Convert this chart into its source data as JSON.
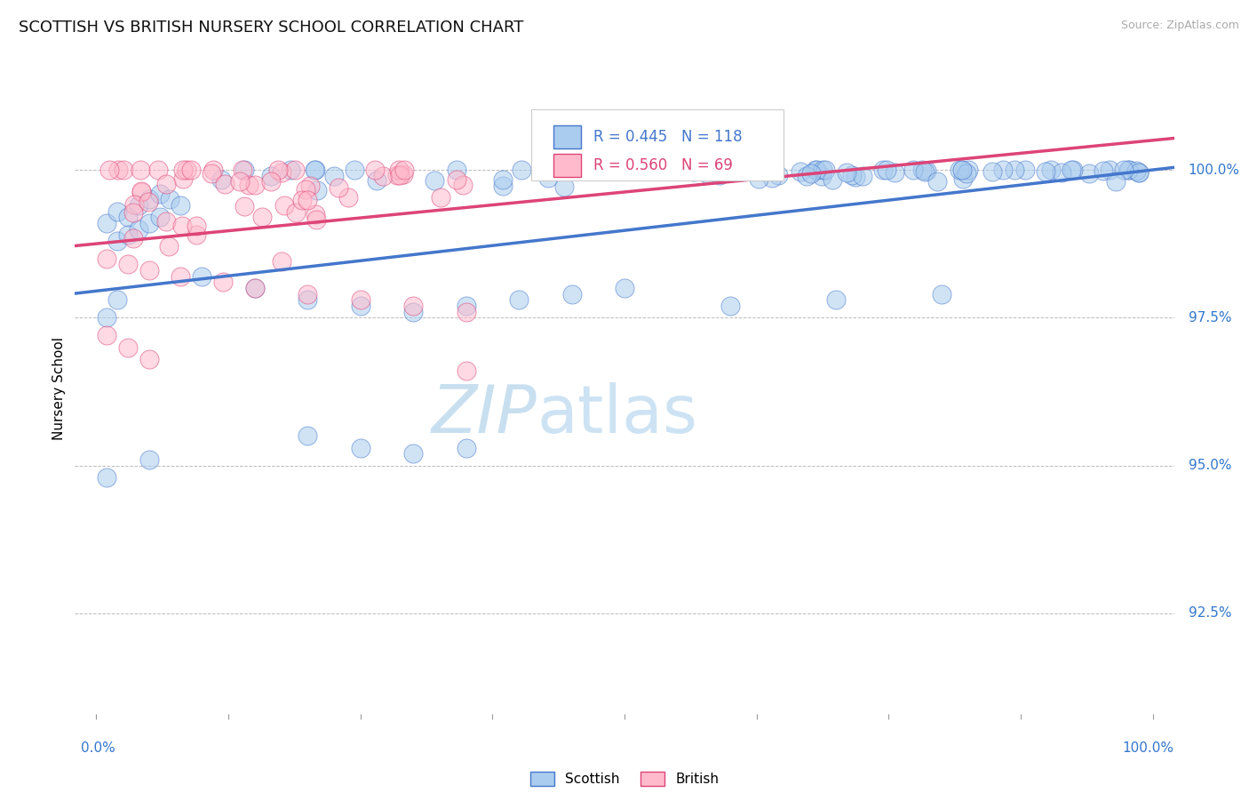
{
  "title": "SCOTTISH VS BRITISH NURSERY SCHOOL CORRELATION CHART",
  "source": "Source: ZipAtlas.com",
  "ylabel": "Nursery School",
  "ytick_labels": [
    "100.0%",
    "97.5%",
    "95.0%",
    "92.5%"
  ],
  "ytick_values": [
    1.0,
    0.975,
    0.95,
    0.925
  ],
  "xlim": [
    -0.02,
    1.02
  ],
  "ylim": [
    0.908,
    1.018
  ],
  "legend_blue_r": "R = 0.445",
  "legend_blue_n": "N = 118",
  "legend_pink_r": "R = 0.560",
  "legend_pink_n": "N = 69",
  "scatter_blue_color": "#aaccee",
  "scatter_pink_color": "#ffbbcc",
  "line_blue_color": "#4477cc",
  "line_pink_color": "#dd4477",
  "watermark_color": "#ddeef8",
  "title_fontsize": 13,
  "blue_line_y0": 0.9795,
  "blue_line_y1": 1.0,
  "pink_line_y0": 0.9875,
  "pink_line_y1": 1.005
}
